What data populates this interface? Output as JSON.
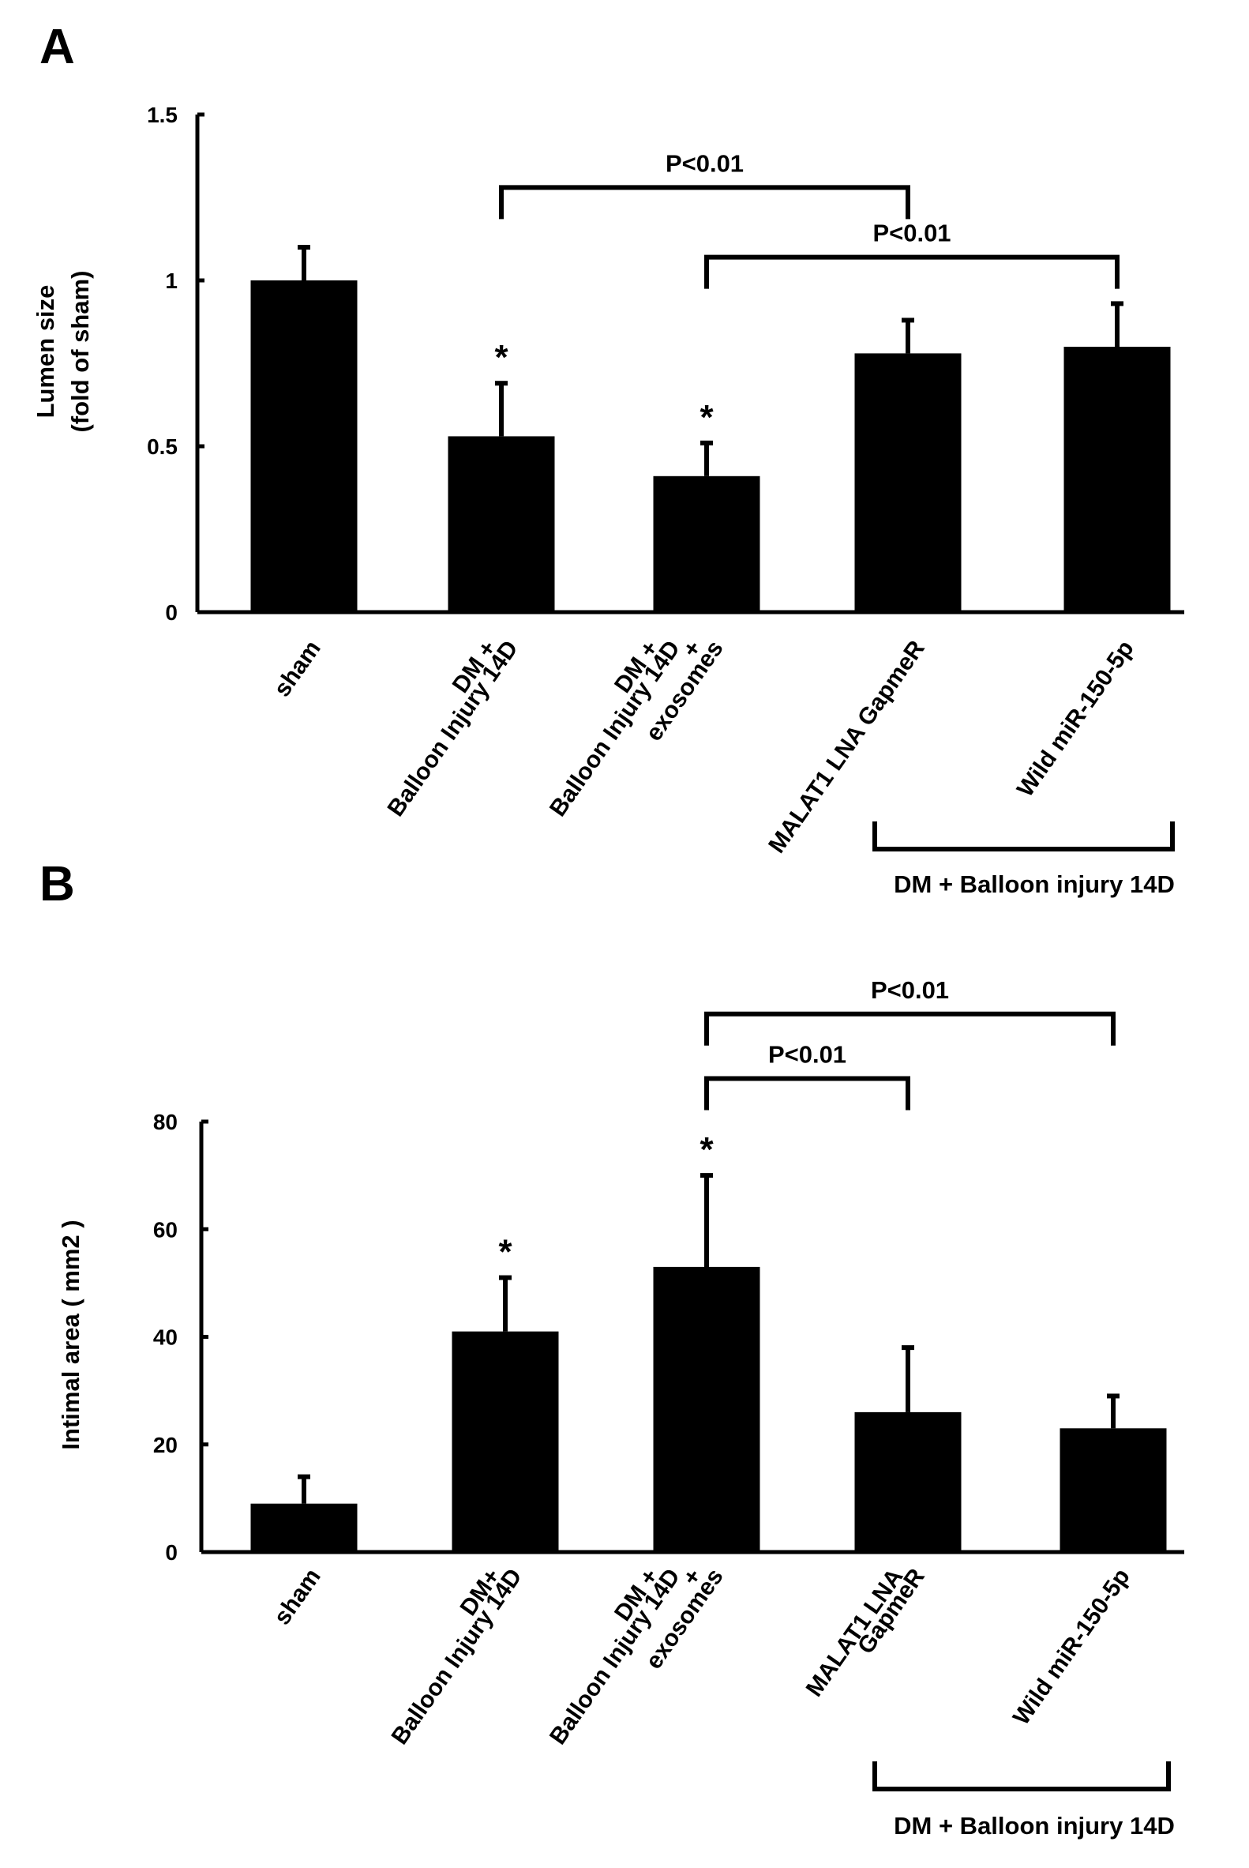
{
  "colors": {
    "bar": "#000000",
    "background": "#ffffff"
  },
  "chart_data": [
    {
      "panel": "A",
      "type": "bar",
      "ylabel": [
        "Lumen size",
        "(fold of sham)"
      ],
      "ylim": [
        0,
        1.5
      ],
      "yticks": [
        0,
        0.5,
        1,
        1.5
      ],
      "ytick_labels": [
        "0",
        "0.5",
        "1",
        "1.5"
      ],
      "categories": [
        [
          "sham"
        ],
        [
          "DM +",
          "Balloon Injury 14D"
        ],
        [
          "DM +",
          "Balloon Injury 14D",
          "+",
          "exosomes"
        ],
        [
          "MALAT1 LNA GapmeR"
        ],
        [
          "Wild miR-150-5p"
        ]
      ],
      "values": [
        1.0,
        0.53,
        0.41,
        0.78,
        0.8
      ],
      "errors": [
        0.1,
        0.16,
        0.1,
        0.1,
        0.13
      ],
      "significance_marks": [
        "",
        "*",
        "*",
        "",
        ""
      ],
      "comparisons": [
        {
          "from": 1,
          "to": 3,
          "label": "P<0.01",
          "level": 1.28
        },
        {
          "from": 2,
          "to": 4,
          "label": "P<0.01",
          "level": 1.07
        }
      ],
      "group_bracket": {
        "from": 3,
        "to": 4,
        "label": "DM + Balloon injury 14D"
      }
    },
    {
      "panel": "B",
      "type": "bar",
      "ylabel": [
        "Intimal area ( mm2 )"
      ],
      "ylim": [
        0,
        80
      ],
      "yticks": [
        0,
        20,
        40,
        60,
        80
      ],
      "ytick_labels": [
        "0",
        "20",
        "40",
        "60",
        "80"
      ],
      "categories": [
        [
          "sham"
        ],
        [
          "DM+",
          "Balloon Injury 14D"
        ],
        [
          "DM +",
          "Balloon Injury 14D",
          "+",
          "exosomes"
        ],
        [
          "MALAT1 LNA",
          "GapmeR"
        ],
        [
          "Wild miR-150-5p"
        ]
      ],
      "values": [
        9,
        41,
        53,
        26,
        23
      ],
      "errors": [
        5,
        10,
        17,
        12,
        6
      ],
      "significance_marks": [
        "",
        "*",
        "*",
        "",
        ""
      ],
      "comparisons": [
        {
          "from": 2,
          "to": 3,
          "label": "P<0.01",
          "level": 88
        },
        {
          "from": 2,
          "to": 4,
          "label": "P<0.01",
          "level": 100
        }
      ],
      "group_bracket": {
        "from": 3,
        "to": 4,
        "label": "DM + Balloon injury 14D"
      }
    }
  ]
}
